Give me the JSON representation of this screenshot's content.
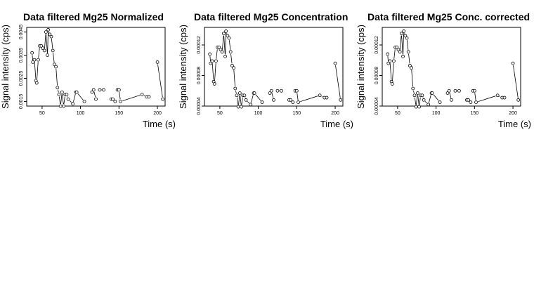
{
  "chart_data": [
    {
      "type": "scatter",
      "title": "Data filtered Mg25 Normalized",
      "xlabel": "Time (s)",
      "ylabel": "Signal intensity (cps)",
      "xlim": [
        30,
        210
      ],
      "ylim": [
        0.0013,
        0.0047
      ],
      "xticks": [
        50,
        100,
        150,
        200
      ],
      "xtick_labels": [
        "50",
        "100",
        "150",
        "200"
      ],
      "yticks": [
        0.0015,
        0.0025,
        0.0035,
        0.0045
      ],
      "ytick_labels": [
        "0.0015",
        "0.0025",
        "0.0035",
        "0.0045"
      ],
      "grid": false,
      "points": [
        [
          37,
          0.0036
        ],
        [
          38,
          0.0032
        ],
        [
          40,
          0.0033
        ],
        [
          42,
          0.0024
        ],
        [
          43,
          0.0023
        ],
        [
          45,
          0.0033
        ],
        [
          47,
          0.0039
        ],
        [
          49,
          0.0039
        ],
        [
          51,
          0.0038
        ],
        [
          53,
          0.0037
        ],
        [
          55,
          0.0045
        ],
        [
          57,
          0.0035
        ],
        [
          58,
          0.0046
        ],
        [
          60,
          0.0044
        ],
        [
          62,
          0.0043
        ],
        [
          64,
          0.0037
        ],
        [
          66,
          0.0031
        ],
        [
          68,
          0.003
        ],
        [
          70,
          0.0021
        ],
        [
          72,
          0.0018
        ],
        [
          74,
          0.0013
        ],
        [
          76,
          0.0019
        ],
        [
          78,
          0.0013
        ],
        [
          80,
          0.0018
        ],
        [
          82,
          0.0018
        ],
        [
          84,
          0.0016
        ],
        [
          90,
          0.0014
        ],
        [
          94,
          0.0019
        ],
        [
          95,
          0.0019
        ],
        [
          105,
          0.0015
        ],
        [
          115,
          0.0019
        ],
        [
          117,
          0.002
        ],
        [
          120,
          0.0016
        ],
        [
          125,
          0.002
        ],
        [
          130,
          0.002
        ],
        [
          140,
          0.0016
        ],
        [
          142,
          0.0016
        ],
        [
          145,
          0.0015
        ],
        [
          148,
          0.002
        ],
        [
          150,
          0.002
        ],
        [
          152,
          0.0015
        ],
        [
          180,
          0.0018
        ],
        [
          186,
          0.0017
        ],
        [
          189,
          0.0017
        ],
        [
          200,
          0.0032
        ],
        [
          207,
          0.0016
        ]
      ],
      "breaks_after": [
        29,
        30,
        32,
        34,
        36,
        37,
        38,
        42,
        43,
        45
      ]
    },
    {
      "type": "scatter",
      "title": "Data filtered Mg25 Concentration",
      "xlabel": "Time (s)",
      "ylabel": "Signal intensity (cps)",
      "xlim": [
        30,
        210
      ],
      "ylim": [
        4e-05,
        0.000143
      ],
      "xticks": [
        50,
        100,
        150,
        200
      ],
      "xtick_labels": [
        "50",
        "100",
        "150",
        "200"
      ],
      "yticks": [
        4e-05,
        8e-05,
        0.00012
      ],
      "ytick_labels": [
        "0.00004",
        "0.00008",
        "0.00012"
      ],
      "grid": false,
      "points": [
        [
          37,
          0.000108
        ],
        [
          38,
          9.6e-05
        ],
        [
          40,
          9.9e-05
        ],
        [
          42,
          7.2e-05
        ],
        [
          43,
          6.9e-05
        ],
        [
          45,
          9.9e-05
        ],
        [
          47,
          0.000117
        ],
        [
          49,
          0.000117
        ],
        [
          51,
          0.000114
        ],
        [
          53,
          0.000111
        ],
        [
          55,
          0.000135
        ],
        [
          57,
          0.000105
        ],
        [
          58,
          0.000138
        ],
        [
          60,
          0.000132
        ],
        [
          62,
          0.000129
        ],
        [
          64,
          0.000111
        ],
        [
          66,
          9.3e-05
        ],
        [
          68,
          9e-05
        ],
        [
          70,
          6.3e-05
        ],
        [
          72,
          5.4e-05
        ],
        [
          74,
          3.9e-05
        ],
        [
          76,
          5.7e-05
        ],
        [
          78,
          3.9e-05
        ],
        [
          80,
          5.4e-05
        ],
        [
          82,
          5.4e-05
        ],
        [
          84,
          4.8e-05
        ],
        [
          90,
          4.2e-05
        ],
        [
          94,
          5.7e-05
        ],
        [
          95,
          5.7e-05
        ],
        [
          105,
          4.5e-05
        ],
        [
          115,
          5.7e-05
        ],
        [
          117,
          6e-05
        ],
        [
          120,
          4.8e-05
        ],
        [
          125,
          6e-05
        ],
        [
          130,
          6e-05
        ],
        [
          140,
          4.8e-05
        ],
        [
          142,
          4.8e-05
        ],
        [
          145,
          4.5e-05
        ],
        [
          148,
          6e-05
        ],
        [
          150,
          6e-05
        ],
        [
          152,
          4.5e-05
        ],
        [
          180,
          5.4e-05
        ],
        [
          186,
          5.1e-05
        ],
        [
          189,
          5.1e-05
        ],
        [
          200,
          9.6e-05
        ],
        [
          207,
          4.8e-05
        ]
      ],
      "breaks_after": [
        29,
        30,
        32,
        34,
        36,
        37,
        38,
        42,
        43,
        45
      ]
    },
    {
      "type": "scatter",
      "title": "Data filtered Mg25 Conc. corrected",
      "xlabel": "Time (s)",
      "ylabel": "Signal intensity (cps)",
      "xlim": [
        30,
        210
      ],
      "ylim": [
        4e-05,
        0.000143
      ],
      "xticks": [
        50,
        100,
        150,
        200
      ],
      "xtick_labels": [
        "50",
        "100",
        "150",
        "200"
      ],
      "yticks": [
        4e-05,
        8e-05,
        0.00012
      ],
      "ytick_labels": [
        "0.00004",
        "0.00008",
        "0.00012"
      ],
      "grid": false,
      "points": [
        [
          37,
          0.000108
        ],
        [
          38,
          9.6e-05
        ],
        [
          40,
          9.9e-05
        ],
        [
          42,
          7.2e-05
        ],
        [
          43,
          6.9e-05
        ],
        [
          45,
          9.9e-05
        ],
        [
          47,
          0.000117
        ],
        [
          49,
          0.000117
        ],
        [
          51,
          0.000114
        ],
        [
          53,
          0.000111
        ],
        [
          55,
          0.000135
        ],
        [
          57,
          0.000105
        ],
        [
          58,
          0.000138
        ],
        [
          60,
          0.000132
        ],
        [
          62,
          0.000129
        ],
        [
          64,
          0.000111
        ],
        [
          66,
          9.3e-05
        ],
        [
          68,
          9e-05
        ],
        [
          70,
          6.3e-05
        ],
        [
          72,
          5.4e-05
        ],
        [
          74,
          3.9e-05
        ],
        [
          76,
          5.7e-05
        ],
        [
          78,
          3.9e-05
        ],
        [
          80,
          5.4e-05
        ],
        [
          82,
          5.4e-05
        ],
        [
          84,
          4.8e-05
        ],
        [
          90,
          4.2e-05
        ],
        [
          94,
          5.7e-05
        ],
        [
          95,
          5.7e-05
        ],
        [
          105,
          4.5e-05
        ],
        [
          115,
          5.7e-05
        ],
        [
          117,
          6e-05
        ],
        [
          120,
          4.8e-05
        ],
        [
          125,
          6e-05
        ],
        [
          130,
          6e-05
        ],
        [
          140,
          4.8e-05
        ],
        [
          142,
          4.8e-05
        ],
        [
          145,
          4.5e-05
        ],
        [
          148,
          6e-05
        ],
        [
          150,
          6e-05
        ],
        [
          152,
          4.5e-05
        ],
        [
          180,
          5.4e-05
        ],
        [
          186,
          5.1e-05
        ],
        [
          189,
          5.1e-05
        ],
        [
          200,
          9.6e-05
        ],
        [
          207,
          4.8e-05
        ]
      ],
      "breaks_after": [
        29,
        30,
        32,
        34,
        36,
        37,
        38,
        42,
        43,
        45
      ]
    }
  ]
}
